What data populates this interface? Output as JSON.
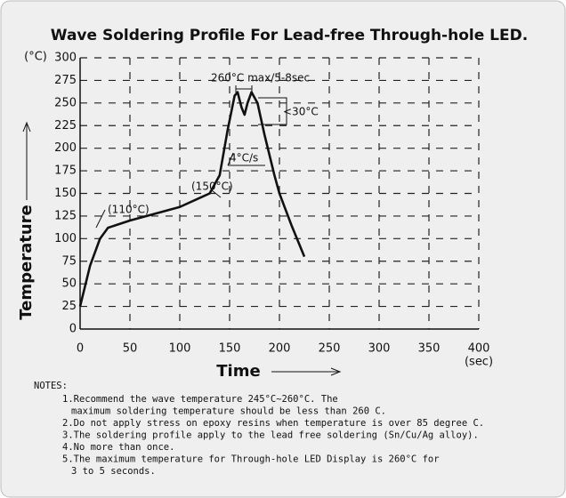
{
  "chart_data": {
    "type": "line",
    "title": "Wave Soldering Profile For Lead-free Through-hole LED.",
    "x_label": "Time",
    "y_label": "Temperature",
    "x_unit": "(sec)",
    "y_unit": "(°C)",
    "x": [
      0,
      10,
      20,
      28,
      50,
      100,
      120,
      130,
      140,
      148,
      155,
      158,
      162,
      165,
      168,
      172,
      178,
      185,
      195,
      200,
      212,
      225
    ],
    "series": [
      {
        "color": "#111111",
        "values": [
          25,
          70,
          100,
          112,
          120,
          135,
          145,
          150,
          170,
          220,
          258,
          262,
          245,
          237,
          250,
          262,
          250,
          215,
          170,
          150,
          115,
          80
        ]
      }
    ],
    "xlim": [
      0,
      400
    ],
    "ylim": [
      0,
      300
    ],
    "xticks": [
      0,
      50,
      100,
      150,
      200,
      250,
      300,
      350,
      400
    ],
    "yticks": [
      0,
      25,
      50,
      75,
      100,
      125,
      150,
      175,
      200,
      225,
      250,
      275,
      300
    ],
    "grid": true,
    "annotations": [
      "(110°C)",
      "(150°C)",
      "260°C max/5-8sec",
      "<30°C",
      "4°C/s"
    ],
    "notes_title": "NOTES:",
    "notes": [
      [
        "1.Recommend the wave temperature 245°C~260°C. The",
        "maximum soldering temperature should be less than 260 C."
      ],
      [
        "2.Do not apply stress on epoxy resins when temperature is over 85 degree C."
      ],
      [
        "3.The soldering profile apply to the lead free soldering (Sn/Cu/Ag alloy)."
      ],
      [
        "4.No more than once."
      ],
      [
        "5.The maximum temperature for Through-hole LED Display is 260°C for",
        "3 to 5 seconds."
      ]
    ]
  }
}
